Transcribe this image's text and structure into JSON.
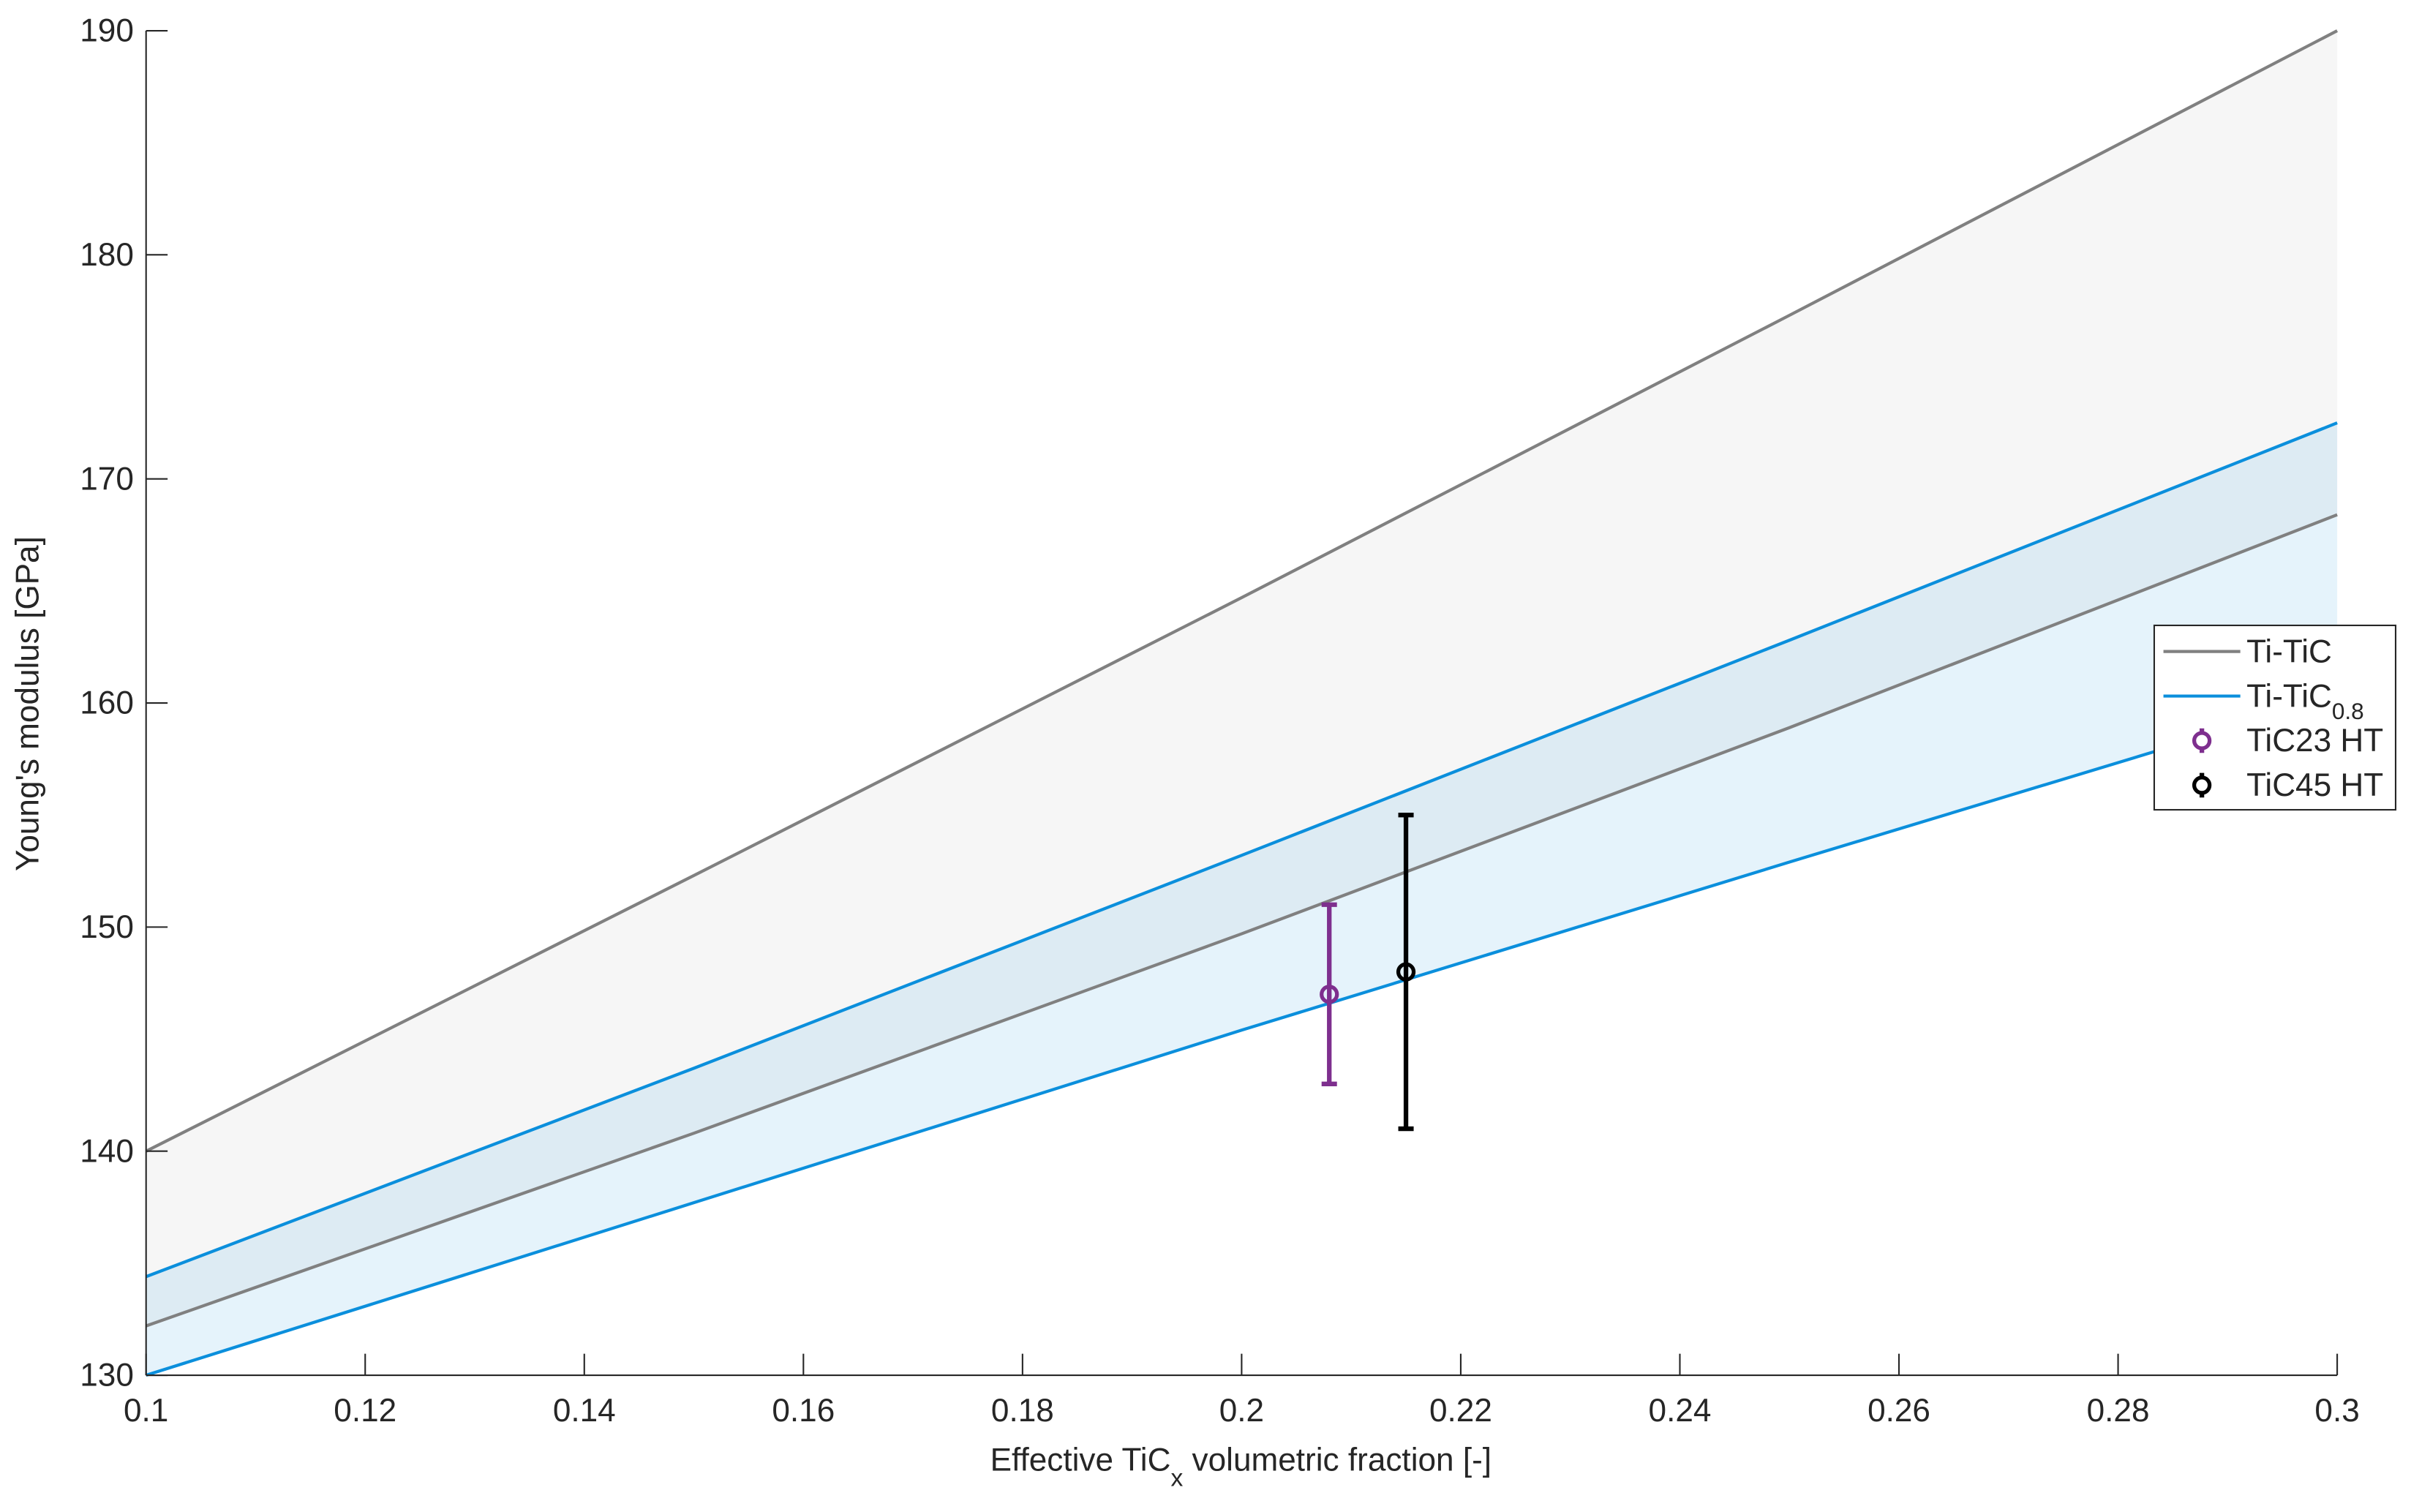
{
  "chart_data": {
    "type": "band",
    "x_label": [
      "Effective TiC",
      "x",
      " volumetric fraction [-]"
    ],
    "y_label": "Young's modulus [GPa]",
    "xlim": [
      0.1,
      0.3
    ],
    "xticks": [
      0.1,
      0.12,
      0.14,
      0.16,
      0.18,
      0.2,
      0.22,
      0.24,
      0.26,
      0.28,
      0.3
    ],
    "ylim": [
      130,
      190
    ],
    "yticks": [
      130,
      140,
      150,
      160,
      170,
      180,
      190
    ],
    "x": [
      0.1,
      0.15,
      0.2,
      0.25,
      0.3
    ],
    "bands": [
      {
        "name": "Ti-TiC",
        "color": "#808080",
        "fill": "#f6f6f6",
        "upper": [
          140,
          152.3,
          164.7,
          177.3,
          190
        ],
        "lower": [
          132.2,
          140.8,
          149.7,
          158.9,
          168.4
        ]
      },
      {
        "name": "Ti-TiC",
        "name_sub": "0.8",
        "color": "#0b8fdc",
        "fill": "rgba(0,140,220,0.10)",
        "upper": [
          134.4,
          143.7,
          153.2,
          162.8,
          172.5
        ],
        "lower": [
          130,
          137.7,
          145.4,
          152.9,
          160.3
        ]
      }
    ],
    "points": [
      {
        "name": "TiC23 HT",
        "color": "#7e2f8e",
        "x": 0.208,
        "value": 147,
        "error": 4
      },
      {
        "name": "TiC45 HT",
        "color": "#000000",
        "x": 0.215,
        "value": 148,
        "error": 7
      }
    ],
    "legend": "east"
  }
}
